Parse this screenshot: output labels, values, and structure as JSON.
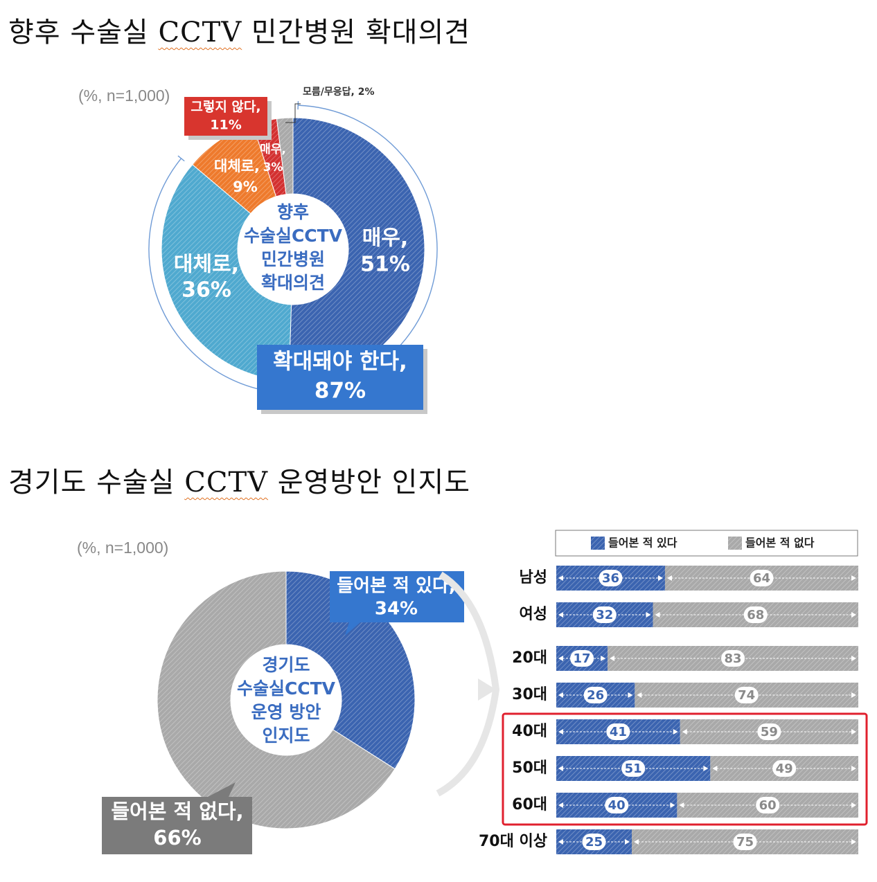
{
  "headings": {
    "first_prefix": "향후 수술실 ",
    "first_cctv": "CCTV",
    "first_suffix": " 민간병원 확대의견",
    "second_prefix": "경기도 수술실 ",
    "second_cctv": "CCTV",
    "second_suffix": " 운영방안 인지도"
  },
  "colors": {
    "blue_dark": "#3b64b0",
    "blue_light": "#4fa9cf",
    "orange": "#ee7a2c",
    "red": "#d33030",
    "gray": "#a9a9a9",
    "label_blue": "#3577cf",
    "label_red": "#d8352e",
    "label_gray": "#7b7b7b",
    "highlight": "#e0202e"
  },
  "chart_data": [
    {
      "type": "pie",
      "variant": "donut",
      "note": "(%, n=1,000)",
      "center_label": [
        "향후",
        "수술실CCTV",
        "민간병원",
        "확대의견"
      ],
      "slices": [
        {
          "label_lines": [
            "매우,",
            "51%"
          ],
          "value": 51
        },
        {
          "label_lines": [
            "대체로,",
            "36%"
          ],
          "value": 36
        },
        {
          "label_lines": [
            "대체로,",
            "9%"
          ],
          "value": 9
        },
        {
          "label_lines": [
            "매우,",
            "3%"
          ],
          "value": 3
        },
        {
          "label": "모름/무응답, 2%",
          "value": 2
        }
      ],
      "group_labels": [
        {
          "lines": [
            "확대돼야 한다,",
            "87%"
          ],
          "value": 87
        },
        {
          "lines": [
            "그렇지 않다,",
            "11%"
          ],
          "value": 11
        }
      ]
    },
    {
      "type": "pie",
      "variant": "donut",
      "note": "(%, n=1,000)",
      "center_label": [
        "경기도",
        "수술실CCTV",
        "운영 방안",
        "인지도"
      ],
      "slices": [
        {
          "label_lines": [
            "들어본 적 있다,",
            "34%"
          ],
          "value": 34
        },
        {
          "label_lines": [
            "들어본 적 없다,",
            "66%"
          ],
          "value": 66
        }
      ]
    },
    {
      "type": "bar",
      "orientation": "horizontal",
      "stacked": true,
      "legend_position": "top",
      "series": [
        {
          "name": "들어본 적 있다",
          "values": [
            36,
            32,
            17,
            26,
            41,
            51,
            40,
            25
          ]
        },
        {
          "name": "들어본 적 없다",
          "values": [
            64,
            68,
            83,
            74,
            59,
            49,
            60,
            75
          ]
        }
      ],
      "categories": [
        "남성",
        "여성",
        "20대",
        "30대",
        "40대",
        "50대",
        "60대",
        "70대 이상"
      ],
      "highlighted_categories": [
        "40대",
        "50대",
        "60대"
      ]
    }
  ]
}
